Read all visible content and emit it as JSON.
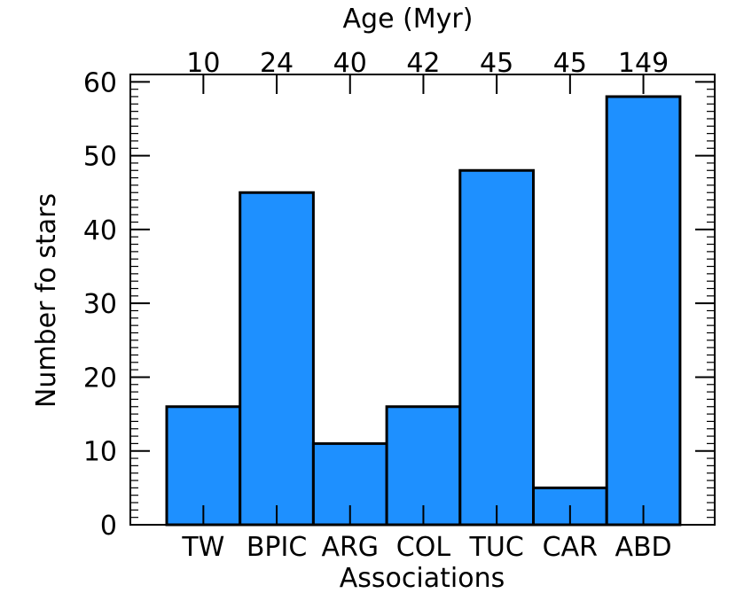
{
  "chart_data": {
    "type": "bar",
    "categories": [
      "TW",
      "BPIC",
      "ARG",
      "COL",
      "TUC",
      "CAR",
      "ABD"
    ],
    "values": [
      16,
      45,
      11,
      16,
      48,
      5,
      58
    ],
    "top_tick_labels": [
      "10",
      "24",
      "40",
      "42",
      "45",
      "45",
      "149"
    ],
    "title": "",
    "xlabel": "Associations",
    "ylabel": "Number fo stars",
    "top_xlabel": "Age (Myr)",
    "ylim": [
      0,
      61
    ],
    "yticks": [
      0,
      10,
      20,
      30,
      40,
      50,
      60
    ],
    "bar_color": "#1e90ff",
    "edge_color": "#000000",
    "grid": false,
    "legend": "none"
  }
}
